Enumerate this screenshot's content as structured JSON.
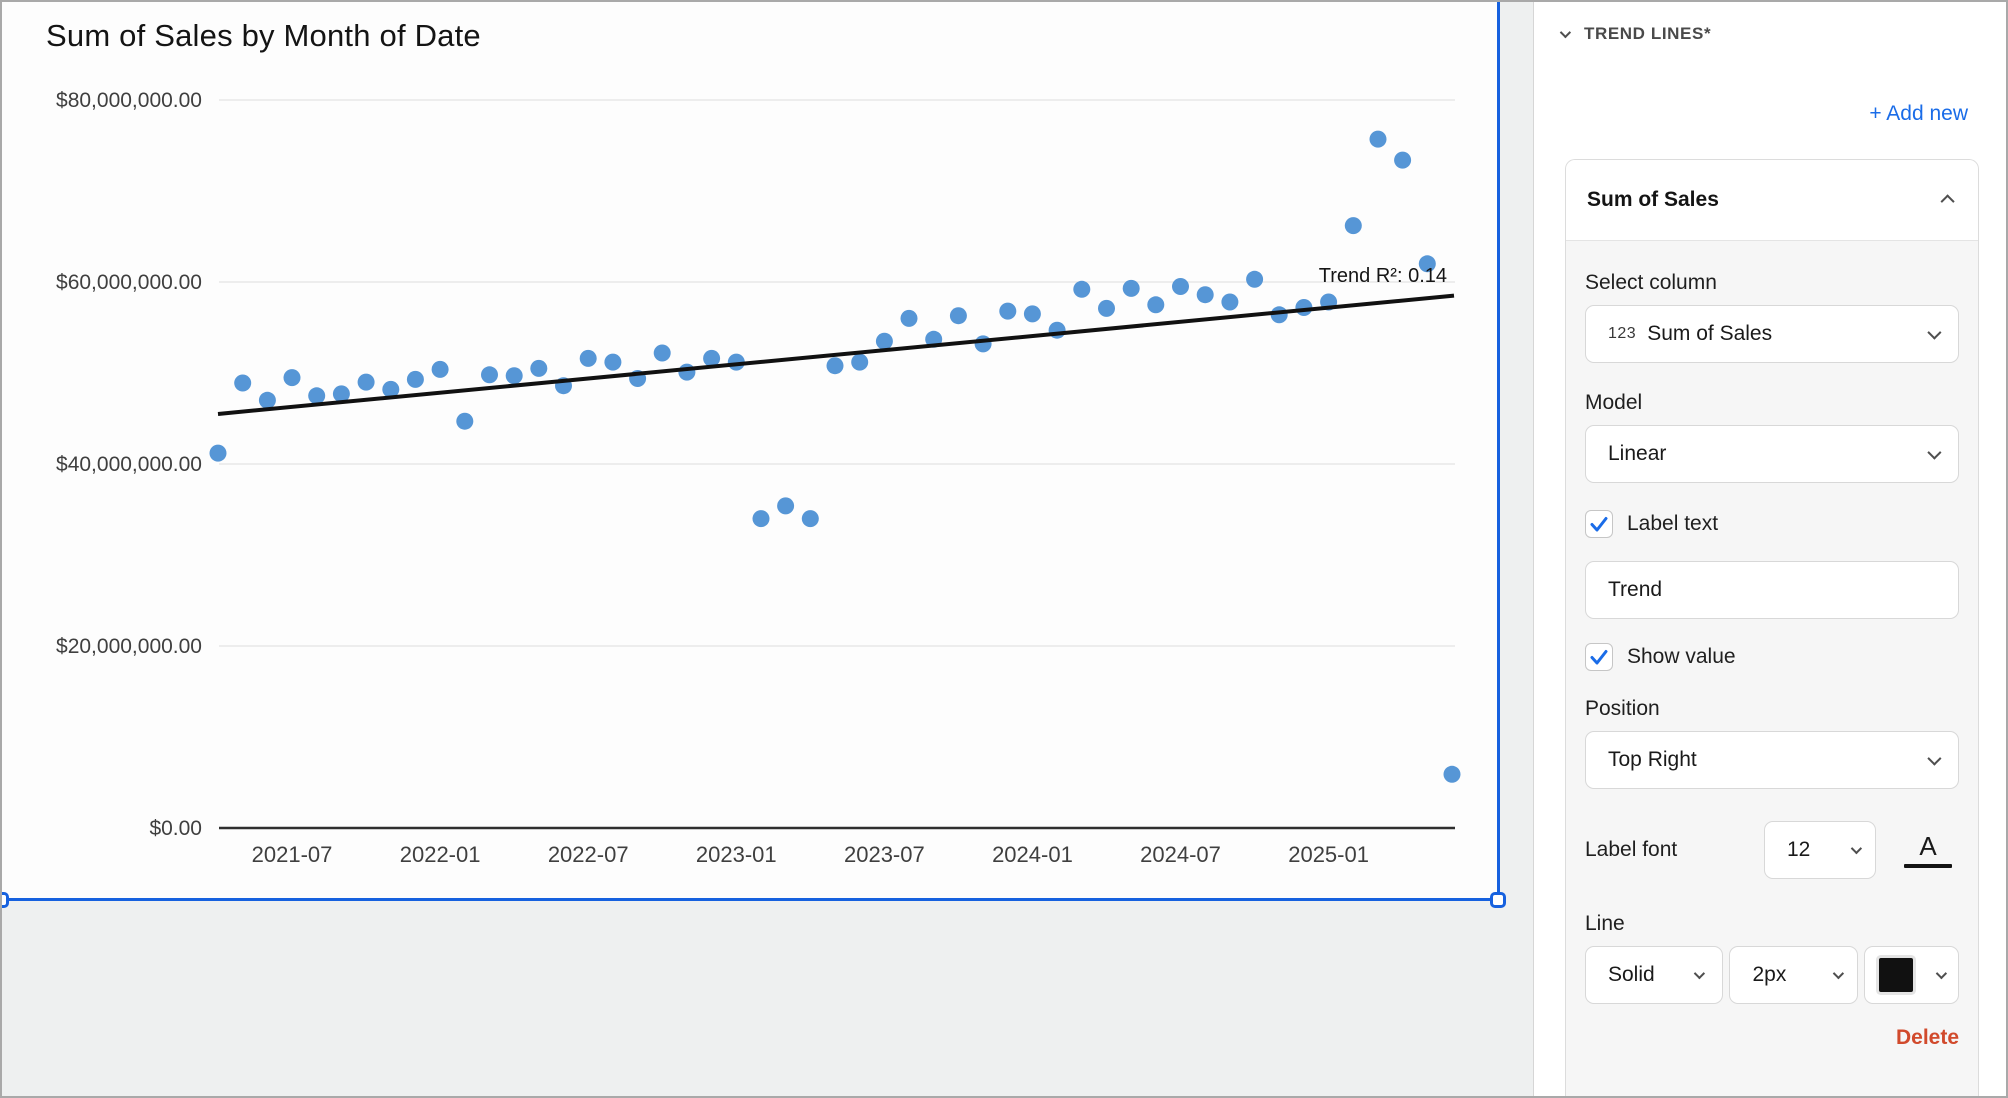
{
  "chart_data": {
    "type": "scatter",
    "title": "Sum of Sales by Month of Date",
    "x": [
      "2021-04",
      "2021-05",
      "2021-06",
      "2021-07",
      "2021-08",
      "2021-09",
      "2021-10",
      "2021-11",
      "2021-12",
      "2022-01",
      "2022-02",
      "2022-03",
      "2022-04",
      "2022-05",
      "2022-06",
      "2022-07",
      "2022-08",
      "2022-09",
      "2022-10",
      "2022-11",
      "2022-12",
      "2023-01",
      "2023-02",
      "2023-03",
      "2023-04",
      "2023-05",
      "2023-06",
      "2023-07",
      "2023-08",
      "2023-09",
      "2023-10",
      "2023-11",
      "2023-12",
      "2024-01",
      "2024-02",
      "2024-03",
      "2024-04",
      "2024-05",
      "2024-06",
      "2024-07",
      "2024-08",
      "2024-09",
      "2024-10",
      "2024-11",
      "2024-12",
      "2025-01",
      "2025-02",
      "2025-03",
      "2025-04",
      "2025-05",
      "2025-06"
    ],
    "values_millions": [
      41.2,
      48.9,
      47.0,
      49.5,
      47.5,
      47.7,
      49.0,
      48.2,
      49.3,
      50.4,
      44.7,
      49.8,
      49.7,
      50.5,
      48.6,
      51.6,
      51.2,
      49.4,
      52.2,
      50.1,
      51.6,
      51.2,
      34.0,
      35.4,
      34.0,
      50.8,
      51.2,
      53.5,
      56.0,
      53.7,
      56.3,
      53.2,
      56.8,
      56.5,
      54.7,
      59.2,
      57.1,
      59.3,
      57.5,
      59.5,
      58.6,
      57.8,
      60.3,
      56.4,
      57.2,
      57.8,
      66.2,
      75.7,
      73.4,
      62.0,
      5.9
    ],
    "value_unit": "USD millions",
    "xlabel": "",
    "ylabel": "",
    "ylim_usd": [
      0,
      80000000
    ],
    "y_ticks_millions": [
      0,
      20,
      40,
      60,
      80
    ],
    "y_tick_labels": [
      "$0.00",
      "$20,000,000.00",
      "$40,000,000.00",
      "$60,000,000.00",
      "$80,000,000.00"
    ],
    "x_tick_labels": [
      "2021-07",
      "2022-01",
      "2022-07",
      "2023-01",
      "2023-07",
      "2024-01",
      "2024-07",
      "2025-01"
    ],
    "grid": true,
    "legend": "none",
    "trend": {
      "model": "linear",
      "label": "Trend R²: 0.14",
      "r_squared": 0.14,
      "start_value_millions": 45.5,
      "end_value_millions": 58.5
    },
    "point_color": "#5696d6",
    "trend_color": "#111111"
  },
  "panel": {
    "section_title": "TREND LINES*",
    "add_new_label": "+ Add new",
    "card": {
      "title": "Sum of Sales",
      "select_column": {
        "label": "Select column",
        "value_prefix": "123",
        "value": "Sum of Sales"
      },
      "model": {
        "label": "Model",
        "value": "Linear"
      },
      "label_text": {
        "label": "Label text",
        "checked": true
      },
      "label_input": {
        "value": "Trend"
      },
      "show_value": {
        "label": "Show value",
        "checked": true
      },
      "position": {
        "label": "Position",
        "value": "Top Right"
      },
      "label_font": {
        "label": "Label font",
        "size_value": "12",
        "color_button": "A"
      },
      "line": {
        "label": "Line",
        "style_value": "Solid",
        "width_value": "2px",
        "color_value": "#111111"
      },
      "delete_label": "Delete"
    }
  },
  "colors": {
    "selection_blue": "#1661df",
    "link_blue": "#1a6ce8",
    "delete_red": "#d14a2c",
    "point_blue": "#5696d6"
  }
}
